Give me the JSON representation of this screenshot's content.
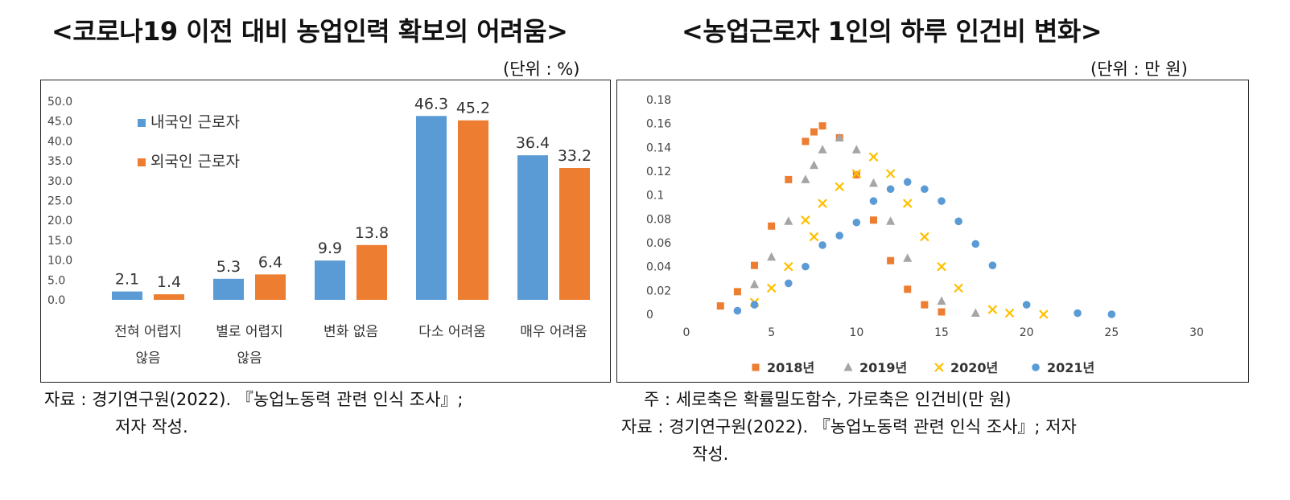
{
  "left": {
    "title": "<코로나19 이전 대비 농업인력 확보의 어려움>",
    "unit": "(단위 : %)",
    "source_line1": "자료 : 경기연구원(2022). 『농업노동력 관련 인식 조사』;",
    "source_line2": "저자 작성."
  },
  "right": {
    "title": "<농업근로자 1인의 하루 인건비 변화>",
    "unit": "(단위 : 만 원)",
    "note_line1": "주 : 세로축은 확률밀도함수, 가로축은 인건비(만 원)",
    "note_line2": "자료 : 경기연구원(2022). 『농업노동력 관련 인식 조사』; 저자",
    "note_line3": "작성."
  },
  "chart_data": [
    {
      "type": "bar",
      "title": "<코로나19 이전 대비 농업인력 확보의 어려움>",
      "unit": "%",
      "categories": [
        [
          "전혀 어렵지",
          "않음"
        ],
        [
          "별로 어렵지",
          "않음"
        ],
        [
          "변화 없음"
        ],
        [
          "다소 어려움"
        ],
        [
          "매우 어려움"
        ]
      ],
      "series": [
        {
          "name": "내국인 근로자",
          "color": "#5B9BD5",
          "values": [
            2.1,
            5.3,
            9.9,
            46.3,
            36.4
          ],
          "labels": [
            "2.1",
            "5.3",
            "9.9",
            "46.3",
            "36.4"
          ]
        },
        {
          "name": "외국인 근로자",
          "color": "#ED7D31",
          "values": [
            1.4,
            6.4,
            13.8,
            45.2,
            33.2
          ],
          "labels": [
            "1.4",
            "6.4",
            "13.8",
            "45.2",
            "33.2"
          ]
        }
      ],
      "yticks": [
        "0.0",
        "5.0",
        "10.0",
        "15.0",
        "20.0",
        "25.0",
        "30.0",
        "35.0",
        "40.0",
        "45.0",
        "50.0"
      ],
      "ylim": [
        0,
        50
      ],
      "legend": "top-left"
    },
    {
      "type": "scatter",
      "title": "<농업근로자 1인의 하루 인건비 변화>",
      "xlabel": "인건비(만 원)",
      "ylabel": "확률밀도함수",
      "xlim": [
        0,
        30
      ],
      "ylim": [
        0,
        0.18
      ],
      "xticks": [
        "0",
        "5",
        "10",
        "15",
        "20",
        "25",
        "30"
      ],
      "yticks": [
        "0",
        "0.02",
        "0.04",
        "0.06",
        "0.08",
        "0.1",
        "0.12",
        "0.14",
        "0.16",
        "0.18"
      ],
      "legend": "bottom",
      "series": [
        {
          "name": "2018년",
          "marker": "square",
          "color": "#ED7D31",
          "x": [
            2,
            3,
            4,
            5,
            6,
            7,
            7.5,
            8,
            9,
            10,
            11,
            12,
            13,
            14,
            15
          ],
          "y": [
            0.007,
            0.019,
            0.041,
            0.074,
            0.113,
            0.145,
            0.153,
            0.158,
            0.148,
            0.117,
            0.079,
            0.045,
            0.021,
            0.008,
            0.002
          ]
        },
        {
          "name": "2019년",
          "marker": "triangle",
          "color": "#A5A5A5",
          "x": [
            4,
            5,
            6,
            7,
            7.5,
            8,
            9,
            10,
            11,
            12,
            13,
            15,
            17
          ],
          "y": [
            0.025,
            0.048,
            0.078,
            0.113,
            0.125,
            0.138,
            0.148,
            0.138,
            0.11,
            0.078,
            0.047,
            0.011,
            0.001
          ]
        },
        {
          "name": "2020년",
          "marker": "x",
          "color": "#FFC000",
          "x": [
            4,
            5,
            6,
            7,
            7.5,
            8,
            9,
            10,
            11,
            12,
            13,
            14,
            15,
            16,
            18,
            19,
            21
          ],
          "y": [
            0.01,
            0.022,
            0.04,
            0.079,
            0.065,
            0.093,
            0.107,
            0.118,
            0.132,
            0.118,
            0.093,
            0.065,
            0.04,
            0.022,
            0.004,
            0.001,
            0.0
          ]
        },
        {
          "name": "2021년",
          "marker": "circle",
          "color": "#5B9BD5",
          "x": [
            3,
            4,
            6,
            7,
            8,
            9,
            10,
            11,
            12,
            13,
            14,
            15,
            16,
            17,
            18,
            20,
            23,
            25
          ],
          "y": [
            0.003,
            0.008,
            0.026,
            0.04,
            0.058,
            0.066,
            0.077,
            0.095,
            0.105,
            0.111,
            0.105,
            0.095,
            0.078,
            0.059,
            0.041,
            0.008,
            0.001,
            0.0
          ]
        }
      ]
    }
  ]
}
